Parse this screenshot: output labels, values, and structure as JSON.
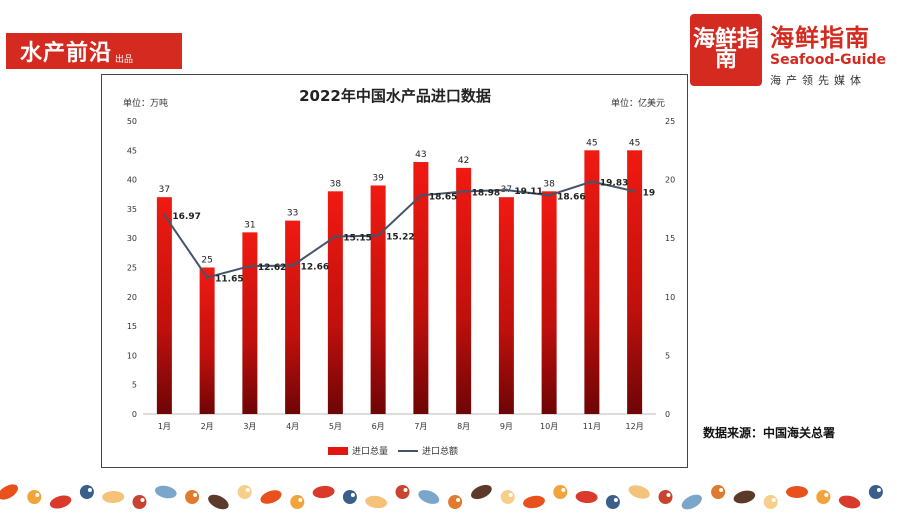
{
  "brand_left": {
    "main": "水产前沿",
    "sub": "出品"
  },
  "brand_right": {
    "logo": "海鲜指南",
    "cn": "海鲜指南",
    "en": "Seafood-Guide",
    "tag": "海产领先媒体",
    "color": "#d42a20"
  },
  "source_note": "数据来源：中国海关总署",
  "chart_data": {
    "type": "bar+line",
    "title": "2022年中国水产品进口数据",
    "left_unit": "单位：万吨",
    "right_unit": "单位：亿美元",
    "categories": [
      "1月",
      "2月",
      "3月",
      "4月",
      "5月",
      "6月",
      "7月",
      "8月",
      "9月",
      "10月",
      "11月",
      "12月"
    ],
    "series": [
      {
        "name": "进口总量",
        "type": "bar",
        "axis": "left",
        "color": "#e2160f",
        "values": [
          37,
          25,
          31,
          33,
          38,
          39,
          43,
          42,
          37,
          38,
          45,
          45
        ],
        "labels": [
          "37",
          "25",
          "31",
          "33",
          "38",
          "39",
          "43",
          "42",
          "37",
          "38",
          "45",
          "45"
        ]
      },
      {
        "name": "进口总额",
        "type": "line",
        "axis": "right",
        "color": "#44546a",
        "values": [
          16.97,
          11.65,
          12.62,
          12.66,
          15.15,
          15.22,
          18.65,
          18.98,
          19.11,
          18.66,
          19.83,
          19
        ],
        "labels": [
          "16.97",
          "11.65",
          "12.62",
          "12.66",
          "15.15",
          "15.22",
          "18.65",
          "18.98",
          "19.11",
          "18.66",
          "19.83",
          "19"
        ]
      }
    ],
    "y_left": {
      "min": 0,
      "max": 50,
      "ticks": [
        "0",
        "5",
        "10",
        "15",
        "20",
        "25",
        "30",
        "35",
        "40",
        "45",
        "50"
      ]
    },
    "y_right": {
      "min": 0,
      "max": 25,
      "ticks": [
        "0",
        "5",
        "10",
        "15",
        "20",
        "25"
      ]
    },
    "legend_position": "bottom",
    "grid": false
  },
  "decor_items": [
    "fish",
    "shrimp",
    "crab",
    "lobster",
    "scallop",
    "shell",
    "octopus",
    "mussel",
    "oyster",
    "squid"
  ]
}
